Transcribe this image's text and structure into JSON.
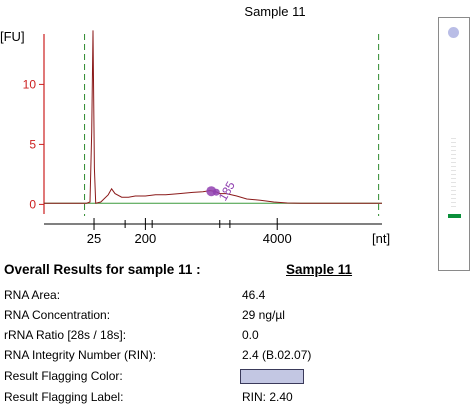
{
  "chart_data": {
    "type": "line",
    "title": "Sample 11",
    "ylabel": "[FU]",
    "xlabel": "[nt]",
    "yticks": [
      0,
      5,
      10
    ],
    "ylim": [
      -0.8,
      14.2
    ],
    "xtick_labels": [
      "25",
      "200",
      "4000"
    ],
    "xlim": [
      0,
      100
    ],
    "xtick_positions": [
      14.8,
      30,
      69
    ],
    "minor_tick_positions": [
      24,
      32,
      52,
      55
    ],
    "lower_marker": 14.8,
    "upper_marker_left": 12,
    "upper_marker_right": 99,
    "trace": [
      [
        0,
        0.1
      ],
      [
        10,
        0.1
      ],
      [
        12.6,
        0.1
      ],
      [
        13.6,
        0.2
      ],
      [
        14.1,
        6
      ],
      [
        14.5,
        14.5
      ],
      [
        14.9,
        3
      ],
      [
        15.3,
        0.1
      ],
      [
        16.8,
        0.2
      ],
      [
        19,
        0.8
      ],
      [
        20,
        1.3
      ],
      [
        21,
        0.9
      ],
      [
        23,
        0.6
      ],
      [
        25,
        0.6
      ],
      [
        27,
        0.7
      ],
      [
        30,
        0.7
      ],
      [
        33,
        0.8
      ],
      [
        36,
        0.8
      ],
      [
        40,
        0.9
      ],
      [
        44,
        1.0
      ],
      [
        47,
        1.05
      ],
      [
        49,
        1.15
      ],
      [
        50.5,
        1.1
      ],
      [
        52,
        0.9
      ],
      [
        54,
        0.9
      ],
      [
        57,
        0.7
      ],
      [
        60,
        0.45
      ],
      [
        64,
        0.35
      ],
      [
        68,
        0.2
      ],
      [
        72,
        0.12
      ],
      [
        76,
        0.1
      ],
      [
        80,
        0.1
      ],
      [
        90,
        0.1
      ],
      [
        100,
        0.1
      ]
    ],
    "annotation": "185",
    "colors": {
      "axis": "#cc2020",
      "trace": "#8b1a1a",
      "baseline": "#3c9a3c",
      "markers": "#2f8a2f",
      "annotation": "#9040b0"
    }
  },
  "results": {
    "title": "Overall Results for sample 11  :",
    "sample_link": "Sample 11",
    "rows": [
      {
        "label": "RNA Area:",
        "value": "46.4"
      },
      {
        "label": "RNA Concentration:",
        "value": "29 ng/µl"
      },
      {
        "label": "rRNA Ratio [28s / 18s]:",
        "value": "0.0"
      },
      {
        "label": "RNA Integrity Number (RIN):",
        "value": "2.4  (B.02.07)"
      },
      {
        "label": "Result Flagging Color:",
        "value": ""
      },
      {
        "label": "Result Flagging Label:",
        "value": "RIN: 2.40"
      }
    ],
    "flag_color": "#c3c7e3"
  },
  "gel": {
    "marker_color": "#b9bde6",
    "band_color": "#0a8f3a"
  }
}
